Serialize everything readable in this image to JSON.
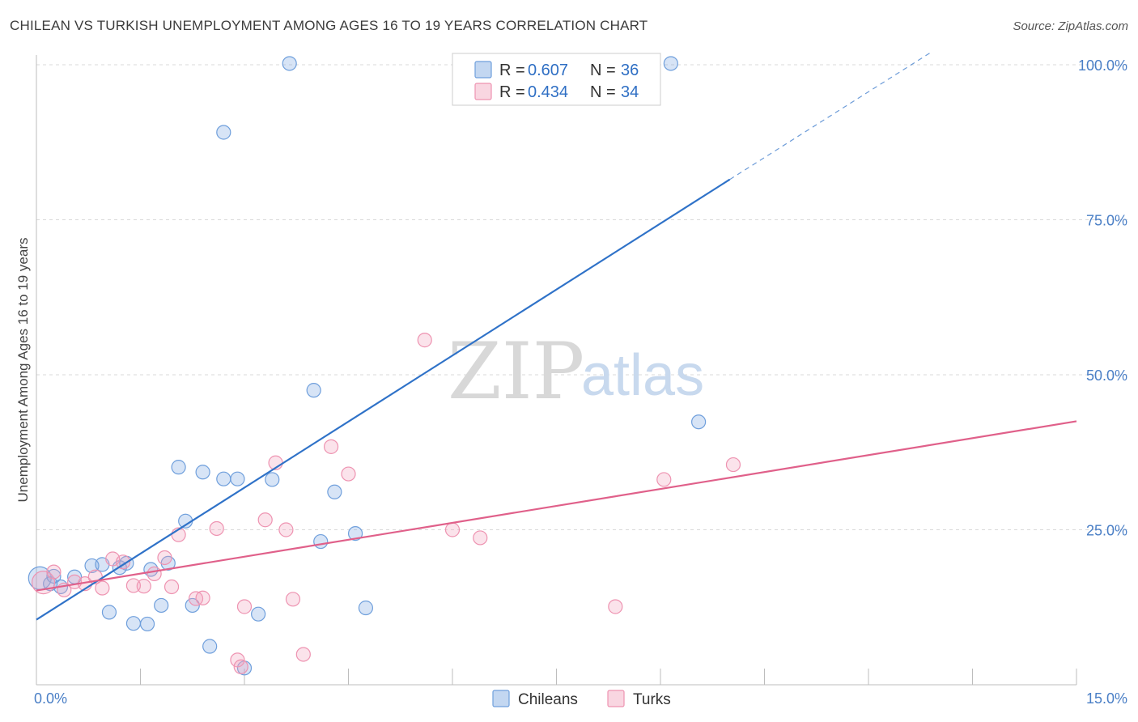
{
  "title": "CHILEAN VS TURKISH UNEMPLOYMENT AMONG AGES 16 TO 19 YEARS CORRELATION CHART",
  "source": "Source: ZipAtlas.com",
  "watermark": {
    "zip": "ZIP",
    "atlas": "atlas"
  },
  "chart_data": {
    "type": "scatter",
    "title": "CHILEAN VS TURKISH UNEMPLOYMENT AMONG AGES 16 TO 19 YEARS CORRELATION CHART",
    "xlabel": "",
    "ylabel": "Unemployment Among Ages 16 to 19 years",
    "xlim": [
      0,
      15
    ],
    "ylim": [
      0,
      100
    ],
    "x_tick_labels": [
      "0.0%",
      "15.0%"
    ],
    "y_ticks": [
      25,
      50,
      75,
      100
    ],
    "y_tick_labels": [
      "25.0%",
      "50.0%",
      "75.0%",
      "100.0%"
    ],
    "grid": true,
    "legend_position": "top-center",
    "series": [
      {
        "name": "Chileans",
        "color": "#7aa6e0",
        "line_color": "#2f72c8",
        "r": "0.607",
        "n": "36",
        "trend": {
          "x0": 0,
          "y0": 10.5,
          "x1": 10,
          "y1": 81.5,
          "dash_x1": 12.9,
          "dash_y1": 102
        },
        "points": [
          [
            0.05,
            17.2
          ],
          [
            0.2,
            16.3
          ],
          [
            0.25,
            17.5
          ],
          [
            0.35,
            15.8
          ],
          [
            0.55,
            17.4
          ],
          [
            0.8,
            19.2
          ],
          [
            0.95,
            19.4
          ],
          [
            1.05,
            11.7
          ],
          [
            1.2,
            18.9
          ],
          [
            1.3,
            19.6
          ],
          [
            1.4,
            9.9
          ],
          [
            1.6,
            9.8
          ],
          [
            1.65,
            18.6
          ],
          [
            1.8,
            12.8
          ],
          [
            1.9,
            19.6
          ],
          [
            2.05,
            35.1
          ],
          [
            2.15,
            26.4
          ],
          [
            2.25,
            12.8
          ],
          [
            2.4,
            34.3
          ],
          [
            2.5,
            6.2
          ],
          [
            2.7,
            33.2
          ],
          [
            2.7,
            89.1
          ],
          [
            2.9,
            33.2
          ],
          [
            3.0,
            2.7
          ],
          [
            3.2,
            11.4
          ],
          [
            3.4,
            33.1
          ],
          [
            3.65,
            100.2
          ],
          [
            4.0,
            47.5
          ],
          [
            4.1,
            23.1
          ],
          [
            4.3,
            31.1
          ],
          [
            4.6,
            24.4
          ],
          [
            4.75,
            12.4
          ],
          [
            9.15,
            100.2
          ],
          [
            9.55,
            42.4
          ]
        ]
      },
      {
        "name": "Turks",
        "color": "#f2a3bd",
        "line_color": "#e0608a",
        "r": "0.434",
        "n": "34",
        "trend": {
          "x0": 0,
          "y0": 15.2,
          "x1": 15,
          "y1": 42.5
        },
        "points": [
          [
            0.1,
            16.5
          ],
          [
            0.25,
            18.2
          ],
          [
            0.4,
            15.3
          ],
          [
            0.55,
            16.6
          ],
          [
            0.7,
            16.3
          ],
          [
            0.85,
            17.4
          ],
          [
            0.95,
            15.6
          ],
          [
            1.1,
            20.3
          ],
          [
            1.25,
            19.8
          ],
          [
            1.4,
            16.0
          ],
          [
            1.55,
            15.9
          ],
          [
            1.7,
            17.9
          ],
          [
            1.85,
            20.5
          ],
          [
            1.95,
            15.8
          ],
          [
            2.05,
            24.2
          ],
          [
            2.3,
            13.9
          ],
          [
            2.4,
            14.0
          ],
          [
            2.6,
            25.2
          ],
          [
            2.9,
            4.0
          ],
          [
            2.95,
            2.9
          ],
          [
            3.0,
            12.6
          ],
          [
            3.3,
            26.6
          ],
          [
            3.45,
            35.8
          ],
          [
            3.6,
            25.0
          ],
          [
            3.7,
            13.8
          ],
          [
            3.85,
            4.9
          ],
          [
            4.25,
            38.4
          ],
          [
            4.5,
            34.0
          ],
          [
            5.6,
            55.6
          ],
          [
            6.0,
            25.0
          ],
          [
            6.4,
            23.7
          ],
          [
            8.35,
            12.6
          ],
          [
            9.05,
            33.1
          ],
          [
            10.05,
            35.5
          ]
        ]
      }
    ]
  },
  "legend": {
    "rows": [
      {
        "r_label": "R = ",
        "r_value": "0.607",
        "n_label": "N = ",
        "n_value": "36"
      },
      {
        "r_label": "R = ",
        "r_value": "0.434",
        "n_label": "N = ",
        "n_value": "34"
      }
    ]
  },
  "bottom_legend": {
    "items": [
      "Chileans",
      "Turks"
    ]
  }
}
